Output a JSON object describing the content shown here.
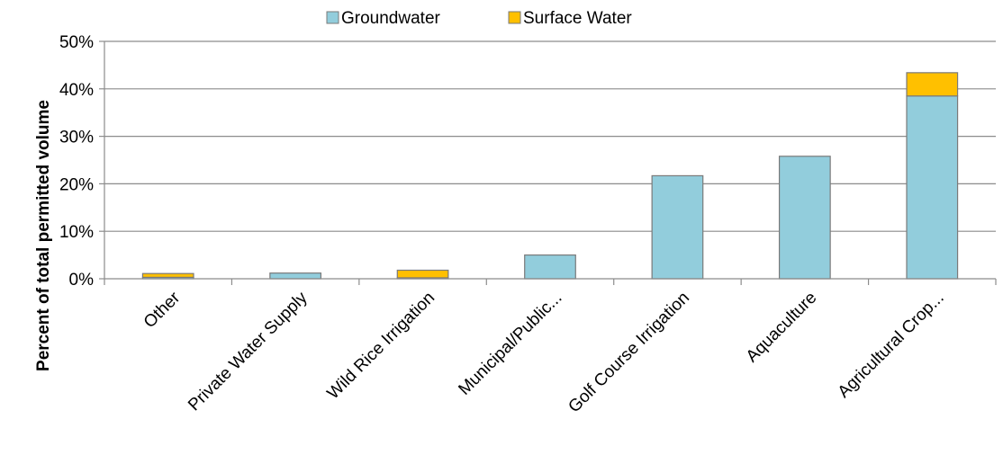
{
  "chart_data": {
    "type": "bar",
    "stacked": true,
    "title": "",
    "xlabel": "",
    "ylabel": "Percent of total permitted volume",
    "ylim": [
      0,
      50
    ],
    "yticks": [
      0,
      10,
      20,
      30,
      40,
      50
    ],
    "ytick_labels": [
      "0%",
      "10%",
      "20%",
      "30%",
      "40%",
      "50%"
    ],
    "grid": true,
    "legend_position": "top-center",
    "categories": [
      "Other",
      "Private Water Supply",
      "Wild Rice Irrigation",
      "Municipal/Public...",
      "Golf Course Irrigation",
      "Aquaculture",
      "Agricultural Crop..."
    ],
    "series": [
      {
        "name": "Groundwater",
        "color": "#92cddc",
        "values": [
          0.3,
          1.2,
          0.2,
          5.0,
          21.7,
          25.8,
          38.5
        ]
      },
      {
        "name": "Surface Water",
        "color": "#ffc000",
        "values": [
          0.8,
          0.0,
          1.6,
          0.0,
          0.0,
          0.0,
          4.9
        ]
      }
    ]
  }
}
